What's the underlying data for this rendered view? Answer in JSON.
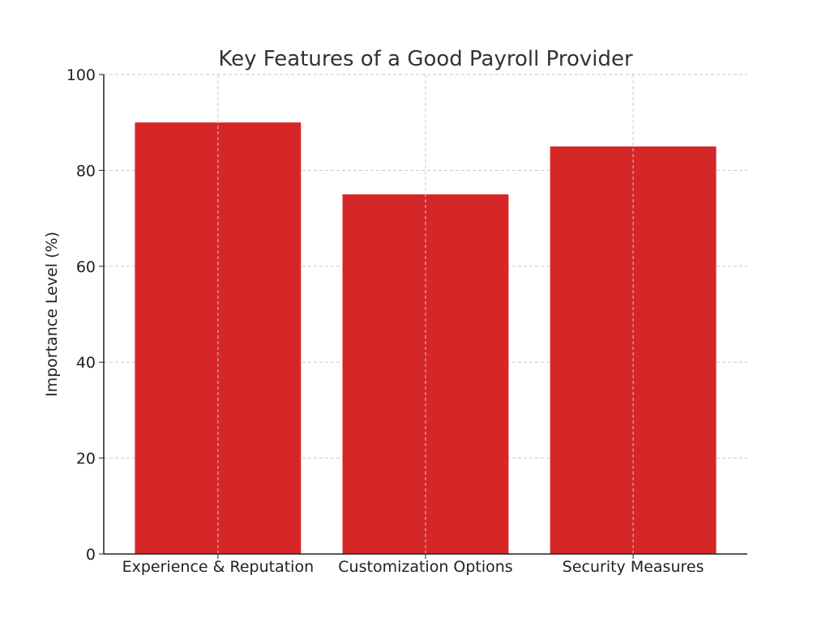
{
  "chart_data": {
    "type": "bar",
    "title": "Key Features of a Good Payroll Provider",
    "xlabel": "",
    "ylabel": "Importance Level (%)",
    "categories": [
      "Experience & Reputation",
      "Customization Options",
      "Security Measures"
    ],
    "values": [
      90,
      75,
      85
    ],
    "ylim": [
      0,
      100
    ],
    "yticks": [
      0,
      20,
      40,
      60,
      80,
      100
    ],
    "bar_color": "#d62728",
    "grid": true,
    "legend": "none"
  }
}
